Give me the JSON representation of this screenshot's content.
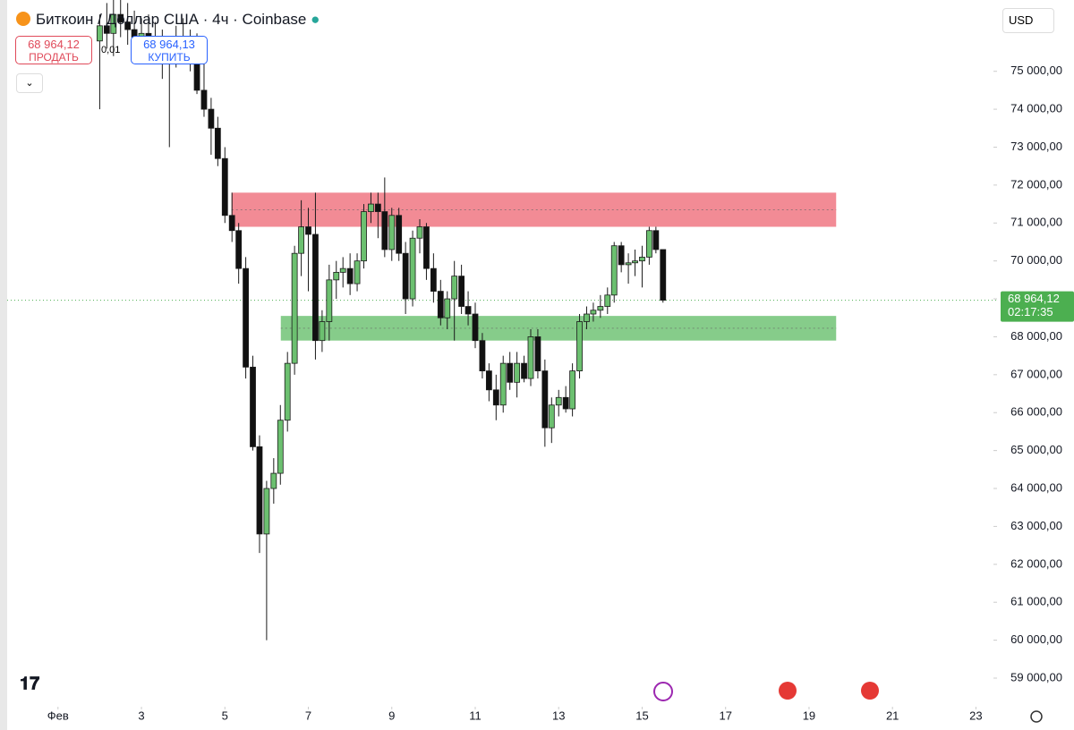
{
  "header": {
    "title": "Биткоин / Доллар США · 4ч · Coinbase",
    "sell_price": "68 964,12",
    "sell_label": "ПРОДАТЬ",
    "spread": "0,01",
    "buy_price": "68 964,13",
    "buy_label": "КУПИТЬ",
    "currency": "USD"
  },
  "chart_data": {
    "type": "candlestick",
    "up_color": "#6cc070",
    "down_color": "#111111",
    "x": [
      2,
      2.17,
      2.33,
      2.5,
      2.67,
      2.83,
      3,
      3.17,
      3.33,
      3.5,
      3.67,
      3.83,
      4,
      4.17,
      4.33,
      4.5,
      4.67,
      4.83,
      5,
      5.17,
      5.33,
      5.5,
      5.67,
      5.83,
      6,
      6.17,
      6.33,
      6.5,
      6.67,
      6.83,
      7,
      7.17,
      7.33,
      7.5,
      7.67,
      7.83,
      8,
      8.17,
      8.33,
      8.5,
      8.67,
      8.83,
      9,
      9.17,
      9.33,
      9.5,
      9.67,
      9.83,
      10,
      10.17,
      10.33,
      10.5,
      10.67,
      10.83,
      11,
      11.17,
      11.33,
      11.5,
      11.67,
      11.83,
      12,
      12.17,
      12.33,
      12.5,
      12.67,
      12.83,
      13,
      13.17,
      13.33,
      13.5,
      13.67,
      13.83,
      14,
      14.17,
      14.33,
      14.5,
      14.67,
      14.83,
      15,
      15.17,
      15.33,
      15.5
    ],
    "open": [
      75800,
      76200,
      76000,
      76500,
      76300,
      76100,
      75900,
      76000,
      75800,
      75600,
      75300,
      75500,
      75900,
      75600,
      75400,
      74500,
      74000,
      73500,
      72700,
      71200,
      70800,
      69800,
      67200,
      65100,
      62800,
      64000,
      64400,
      65800,
      67300,
      70200,
      70900,
      70700,
      67900,
      68400,
      69500,
      69700,
      69800,
      69400,
      70000,
      71300,
      71500,
      71300,
      70300,
      71200,
      70200,
      69000,
      70600,
      70900,
      69800,
      69200,
      68500,
      69000,
      69600,
      68800,
      68600,
      67900,
      67100,
      66600,
      66200,
      67300,
      66800,
      67300,
      66900,
      68000,
      67100,
      65600,
      66200,
      66400,
      66100,
      67100,
      68400,
      68600,
      68700,
      68800,
      69100,
      70400,
      69900,
      69950,
      70000,
      70100,
      70800,
      70300
    ],
    "high": [
      76500,
      76800,
      76900,
      77000,
      76800,
      76600,
      76400,
      76500,
      76300,
      76100,
      75900,
      76200,
      76400,
      76100,
      76000,
      75200,
      74300,
      73800,
      73000,
      71800,
      71000,
      70100,
      67500,
      65400,
      64200,
      64800,
      66200,
      67600,
      70400,
      71600,
      71400,
      71800,
      68700,
      69900,
      70000,
      70100,
      70200,
      70200,
      71500,
      71800,
      71800,
      72200,
      71400,
      71400,
      70500,
      70800,
      71100,
      71000,
      70200,
      69500,
      69200,
      70000,
      69900,
      69200,
      68900,
      68100,
      67300,
      67000,
      67500,
      67600,
      67600,
      67500,
      68200,
      68200,
      67400,
      66400,
      66600,
      66700,
      67300,
      68600,
      68800,
      68900,
      69100,
      69300,
      70500,
      70500,
      70200,
      70300,
      70400,
      70900,
      70900,
      70300
    ],
    "low": [
      74000,
      75600,
      75400,
      75900,
      75700,
      75500,
      75300,
      75600,
      75200,
      74800,
      73000,
      75100,
      75200,
      75000,
      74400,
      73800,
      72800,
      72500,
      71000,
      70500,
      69400,
      66900,
      65000,
      62300,
      60000,
      63600,
      64100,
      65500,
      67000,
      69600,
      69200,
      67400,
      67600,
      67900,
      69000,
      69300,
      69100,
      69200,
      69800,
      71000,
      70600,
      70100,
      70000,
      70000,
      68600,
      68800,
      70200,
      69500,
      68900,
      68300,
      68200,
      67900,
      68600,
      68300,
      67700,
      66900,
      66300,
      65800,
      66000,
      66600,
      66400,
      66800,
      66700,
      66900,
      65100,
      65200,
      65900,
      66000,
      65900,
      66900,
      68200,
      68400,
      68500,
      68600,
      68900,
      69700,
      69400,
      69600,
      69300,
      69900,
      70200,
      68900
    ],
    "close": [
      76200,
      76000,
      76500,
      76300,
      76100,
      75900,
      76000,
      75800,
      75600,
      75300,
      75500,
      75900,
      75600,
      75400,
      74500,
      74000,
      73500,
      72700,
      71200,
      70800,
      69800,
      67200,
      65100,
      62800,
      64000,
      64400,
      65800,
      67300,
      70200,
      70900,
      70700,
      67900,
      68400,
      69500,
      69700,
      69800,
      69400,
      70000,
      71300,
      71500,
      71300,
      70300,
      71200,
      70200,
      69000,
      70600,
      70900,
      69800,
      69200,
      68500,
      69000,
      69600,
      68800,
      68600,
      67900,
      67100,
      66600,
      66200,
      67300,
      66800,
      67300,
      66900,
      68000,
      67100,
      65600,
      66200,
      66400,
      66100,
      67100,
      68400,
      68600,
      68700,
      68800,
      69100,
      70400,
      69900,
      69950,
      70000,
      70100,
      70800,
      70300,
      68964.12
    ],
    "zones": [
      {
        "color": "#f28b95",
        "from": 5.16,
        "to": 19.65,
        "low": 70900,
        "high": 71800
      },
      {
        "color": "#86cc8a",
        "from": 6.34,
        "to": 19.65,
        "low": 67900,
        "high": 68550
      }
    ],
    "last_price": {
      "value": 68964.12,
      "label": "68 964,12"
    },
    "countdown": "02:17:35",
    "xlim": [
      -0.39,
      23.42
    ],
    "xticks": [
      {
        "value": 1,
        "label": "Фев"
      },
      3,
      5,
      7,
      9,
      11,
      13,
      15,
      17,
      19,
      21,
      23
    ],
    "ylim": [
      58245,
      76880
    ],
    "yticks": [
      {
        "value": 59000,
        "label": "59 000,00"
      },
      {
        "value": 60000,
        "label": "60 000,00"
      },
      {
        "value": 61000,
        "label": "61 000,00"
      },
      {
        "value": 62000,
        "label": "62 000,00"
      },
      {
        "value": 63000,
        "label": "63 000,00"
      },
      {
        "value": 64000,
        "label": "64 000,00"
      },
      {
        "value": 65000,
        "label": "65 000,00"
      },
      {
        "value": 66000,
        "label": "66 000,00"
      },
      {
        "value": 67000,
        "label": "67 000,00"
      },
      {
        "value": 68000,
        "label": "68 000,00"
      },
      {
        "value": 69000,
        "label": "69 000,00"
      },
      {
        "value": 70000,
        "label": "70 000,00"
      },
      {
        "value": 71000,
        "label": "71 000,00"
      },
      {
        "value": 72000,
        "label": "72 000,00"
      },
      {
        "value": 73000,
        "label": "73 000,00"
      },
      {
        "value": 74000,
        "label": "74 000,00"
      },
      {
        "value": 75000,
        "label": "75 000,00"
      }
    ]
  }
}
